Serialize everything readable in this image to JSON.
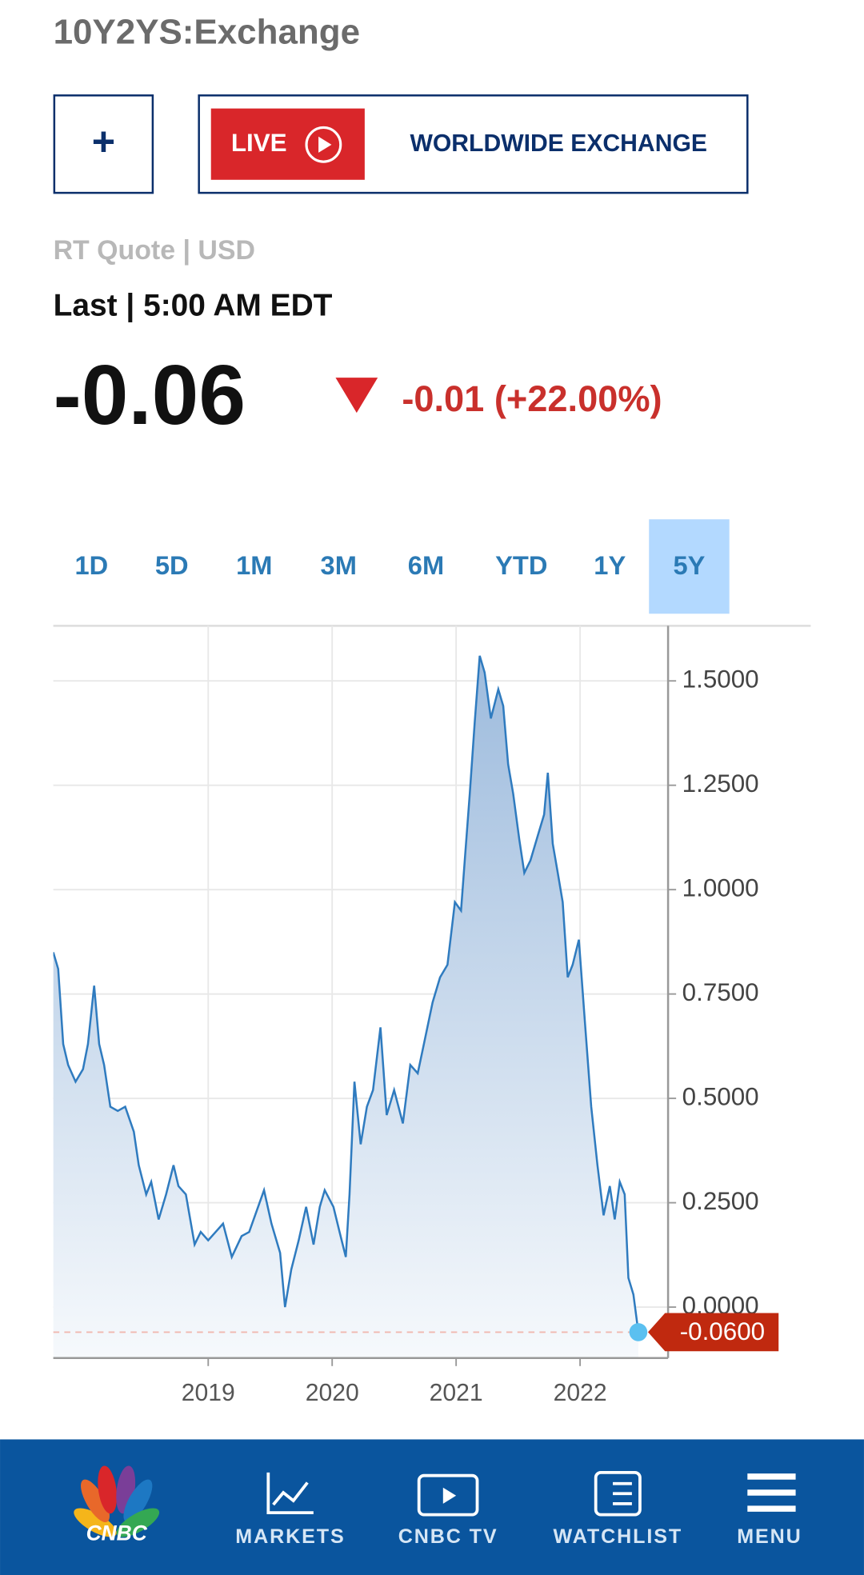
{
  "header": {
    "title": "10Y2YS:Exchange",
    "plus": "+",
    "live": "LIVE",
    "program": "WORLDWIDE EXCHANGE"
  },
  "quote": {
    "source": "RT Quote | USD",
    "time": "Last | 5:00 AM EDT",
    "price": "-0.06",
    "change": "-0.01 (+22.00%)"
  },
  "tabs": {
    "items": [
      "1D",
      "5D",
      "1M",
      "3M",
      "6M",
      "YTD",
      "1Y",
      "5Y"
    ],
    "active": "5Y"
  },
  "chart_data": {
    "type": "area",
    "color": "#2f7bbf",
    "grid": true,
    "x": [
      2017.75,
      2017.79,
      2017.83,
      2017.87,
      2017.93,
      2017.99,
      2018.03,
      2018.08,
      2018.12,
      2018.16,
      2018.21,
      2018.27,
      2018.33,
      2018.4,
      2018.44,
      2018.5,
      2018.54,
      2018.6,
      2018.66,
      2018.72,
      2018.76,
      2018.82,
      2018.89,
      2018.94,
      2019.0,
      2019.06,
      2019.12,
      2019.19,
      2019.27,
      2019.33,
      2019.39,
      2019.45,
      2019.51,
      2019.58,
      2019.62,
      2019.67,
      2019.73,
      2019.79,
      2019.85,
      2019.9,
      2019.94,
      2020.01,
      2020.06,
      2020.11,
      2020.14,
      2020.18,
      2020.23,
      2020.28,
      2020.33,
      2020.39,
      2020.44,
      2020.5,
      2020.57,
      2020.63,
      2020.69,
      2020.74,
      2020.81,
      2020.87,
      2020.93,
      2020.99,
      2021.04,
      2021.07,
      2021.11,
      2021.15,
      2021.19,
      2021.23,
      2021.28,
      2021.34,
      2021.38,
      2021.42,
      2021.46,
      2021.51,
      2021.55,
      2021.6,
      2021.66,
      2021.71,
      2021.74,
      2021.78,
      2021.82,
      2021.86,
      2021.9,
      2021.94,
      2021.99,
      2022.04,
      2022.09,
      2022.14,
      2022.19,
      2022.24,
      2022.28,
      2022.32,
      2022.36,
      2022.39,
      2022.43,
      2022.47
    ],
    "values": [
      0.85,
      0.81,
      0.63,
      0.58,
      0.54,
      0.57,
      0.63,
      0.77,
      0.63,
      0.58,
      0.48,
      0.47,
      0.48,
      0.42,
      0.34,
      0.27,
      0.3,
      0.21,
      0.27,
      0.34,
      0.29,
      0.27,
      0.15,
      0.18,
      0.16,
      0.18,
      0.2,
      0.12,
      0.17,
      0.18,
      0.23,
      0.28,
      0.2,
      0.13,
      0.0,
      0.09,
      0.16,
      0.24,
      0.15,
      0.24,
      0.28,
      0.24,
      0.18,
      0.12,
      0.27,
      0.54,
      0.39,
      0.48,
      0.52,
      0.67,
      0.46,
      0.52,
      0.44,
      0.58,
      0.56,
      0.63,
      0.73,
      0.79,
      0.82,
      0.97,
      0.95,
      1.07,
      1.23,
      1.4,
      1.56,
      1.52,
      1.41,
      1.48,
      1.44,
      1.3,
      1.23,
      1.12,
      1.04,
      1.07,
      1.13,
      1.18,
      1.28,
      1.11,
      1.04,
      0.97,
      0.79,
      0.82,
      0.88,
      0.68,
      0.48,
      0.34,
      0.22,
      0.29,
      0.21,
      0.3,
      0.27,
      0.07,
      0.03,
      -0.06
    ],
    "xlim": [
      2017.75,
      2022.71
    ],
    "xticks": [
      2019,
      2020,
      2021,
      2022
    ],
    "ylim": [
      -0.122,
      1.632
    ],
    "yticks": [
      {
        "value": 0,
        "label": "0.0000"
      },
      {
        "value": 0.25,
        "label": "0.2500"
      },
      {
        "value": 0.5,
        "label": "0.5000"
      },
      {
        "value": 0.75,
        "label": "0.7500"
      },
      {
        "value": 1,
        "label": "1.0000"
      },
      {
        "value": 1.25,
        "label": "1.2500"
      },
      {
        "value": 1.5,
        "label": "1.5000"
      }
    ],
    "last_marker": {
      "value": -0.06,
      "label": "-0.0600"
    }
  },
  "nav": {
    "logo": "CNBC",
    "items": [
      "MARKETS",
      "CNBC TV",
      "WATCHLIST",
      "MENU"
    ]
  }
}
